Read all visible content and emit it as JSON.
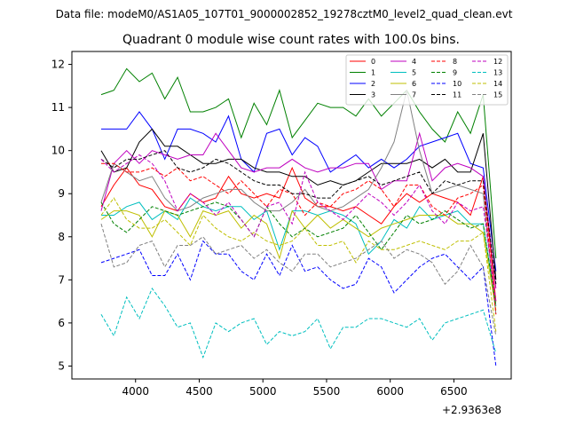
{
  "chart_data": {
    "type": "line",
    "suptitle": "Data file: modeM0/AS1A05_107T01_9000002852_19278cztM0_level2_quad_clean.evt",
    "title": "Quadrant 0 module wise count rates with 100.0s bins.",
    "xlabel": "",
    "ylabel": "",
    "x_offset_label": "+2.9363e8",
    "xlim": [
      3500,
      6950
    ],
    "ylim": [
      4.7,
      12.3
    ],
    "x_ticks": [
      4000,
      4500,
      5000,
      5500,
      6000,
      6500
    ],
    "y_ticks": [
      5,
      6,
      7,
      8,
      9,
      10,
      11,
      12
    ],
    "legend_location": "upper-right",
    "x": [
      3730,
      3830,
      3930,
      4030,
      4130,
      4230,
      4330,
      4430,
      4530,
      4630,
      4730,
      4830,
      4930,
      5030,
      5130,
      5230,
      5330,
      5430,
      5530,
      5630,
      5730,
      5830,
      5930,
      6030,
      6130,
      6230,
      6330,
      6430,
      6530,
      6630,
      6730,
      6830
    ],
    "series": [
      {
        "name": "0",
        "color": "#ff0000",
        "style": "solid",
        "values": [
          8.7,
          9.2,
          9.6,
          9.2,
          9.1,
          8.7,
          8.6,
          9.0,
          8.8,
          8.9,
          9.4,
          9.0,
          8.9,
          9.0,
          8.9,
          9.6,
          8.9,
          8.7,
          8.7,
          8.6,
          8.7,
          8.5,
          8.3,
          8.7,
          9.0,
          8.8,
          9.0,
          8.9,
          8.8,
          8.5,
          9.4,
          6.5
        ]
      },
      {
        "name": "1",
        "color": "#008000",
        "style": "solid",
        "values": [
          11.3,
          11.4,
          11.9,
          11.6,
          11.8,
          11.2,
          11.7,
          10.9,
          10.9,
          11.0,
          11.2,
          10.3,
          11.1,
          10.6,
          11.4,
          10.3,
          10.7,
          11.1,
          11.0,
          11.0,
          10.8,
          11.2,
          10.8,
          11.1,
          11.4,
          10.9,
          10.5,
          10.2,
          10.9,
          10.4,
          11.3,
          7.5
        ]
      },
      {
        "name": "2",
        "color": "#0000ff",
        "style": "solid",
        "values": [
          10.5,
          10.5,
          10.5,
          10.9,
          10.5,
          9.8,
          10.5,
          10.5,
          10.4,
          10.2,
          10.8,
          9.8,
          9.5,
          10.4,
          10.5,
          9.9,
          10.3,
          10.1,
          9.5,
          9.7,
          9.9,
          9.6,
          9.8,
          9.6,
          9.8,
          10.1,
          10.2,
          10.3,
          10.4,
          9.7,
          9.6,
          7.2
        ]
      },
      {
        "name": "3",
        "color": "#000000",
        "style": "solid",
        "values": [
          10.0,
          9.5,
          9.6,
          10.2,
          10.5,
          10.1,
          10.1,
          9.9,
          9.7,
          9.7,
          9.8,
          9.8,
          9.6,
          9.5,
          9.5,
          9.4,
          9.4,
          9.2,
          9.3,
          9.2,
          9.3,
          9.5,
          9.7,
          9.7,
          9.7,
          9.8,
          9.6,
          9.8,
          9.5,
          9.5,
          10.4,
          7.0
        ]
      },
      {
        "name": "4",
        "color": "#bf00bf",
        "style": "solid",
        "values": [
          8.6,
          9.7,
          10.0,
          9.7,
          10.0,
          9.9,
          9.8,
          9.9,
          9.9,
          10.4,
          10.0,
          9.6,
          9.5,
          9.6,
          9.6,
          9.8,
          9.6,
          9.5,
          9.6,
          9.6,
          9.7,
          9.7,
          9.1,
          9.3,
          9.3,
          10.4,
          9.3,
          9.6,
          9.7,
          9.6,
          9.4,
          6.8
        ]
      },
      {
        "name": "5",
        "color": "#00bfbf",
        "style": "solid",
        "values": [
          8.5,
          8.5,
          8.7,
          8.8,
          8.4,
          8.6,
          8.4,
          8.9,
          8.7,
          8.6,
          8.7,
          8.7,
          8.4,
          8.6,
          7.7,
          8.6,
          8.6,
          8.5,
          8.6,
          8.5,
          8.3,
          7.6,
          7.9,
          8.4,
          8.2,
          8.7,
          8.4,
          8.5,
          8.6,
          8.3,
          8.3,
          6.4
        ]
      },
      {
        "name": "6",
        "color": "#bfbf00",
        "style": "solid",
        "values": [
          8.4,
          8.6,
          8.6,
          8.5,
          8.0,
          8.6,
          8.5,
          8.0,
          8.6,
          8.5,
          8.6,
          8.2,
          8.5,
          8.3,
          7.5,
          8.6,
          8.2,
          8.5,
          8.2,
          8.4,
          8.2,
          8.0,
          8.2,
          8.3,
          8.4,
          8.5,
          8.5,
          8.5,
          8.3,
          8.3,
          8.1,
          6.3
        ]
      },
      {
        "name": "7",
        "color": "#808080",
        "style": "solid",
        "values": [
          8.8,
          9.7,
          9.5,
          9.3,
          9.4,
          8.9,
          8.6,
          8.7,
          8.9,
          9.0,
          9.1,
          9.1,
          8.8,
          8.6,
          8.6,
          8.8,
          9.1,
          8.7,
          8.6,
          8.7,
          8.9,
          9.1,
          9.6,
          10.2,
          11.4,
          10.0,
          9.0,
          9.1,
          9.2,
          9.1,
          9.0,
          6.2
        ]
      },
      {
        "name": "8",
        "color": "#ff0000",
        "style": "dashed",
        "values": [
          9.7,
          9.7,
          9.5,
          9.5,
          9.6,
          9.4,
          9.6,
          9.3,
          9.4,
          9.2,
          9.0,
          9.3,
          9.0,
          8.7,
          9.1,
          9.0,
          8.5,
          8.8,
          8.7,
          9.0,
          9.1,
          9.3,
          9.1,
          8.7,
          9.2,
          9.2,
          8.7,
          8.5,
          8.9,
          9.0,
          9.2,
          6.2
        ]
      },
      {
        "name": "9",
        "color": "#008000",
        "style": "dashed",
        "values": [
          8.8,
          8.3,
          8.1,
          8.4,
          8.7,
          8.6,
          8.5,
          8.6,
          8.7,
          8.8,
          8.7,
          8.4,
          8.0,
          8.7,
          8.3,
          8.0,
          8.2,
          8.0,
          8.1,
          8.2,
          8.5,
          8.1,
          7.7,
          8.1,
          8.5,
          8.3,
          8.4,
          8.6,
          8.4,
          8.2,
          8.3,
          6.4
        ]
      },
      {
        "name": "10",
        "color": "#0000ff",
        "style": "dashed",
        "values": [
          7.4,
          7.5,
          7.6,
          7.7,
          7.1,
          7.1,
          7.6,
          7.0,
          7.9,
          7.6,
          7.6,
          7.2,
          7.0,
          7.6,
          7.1,
          7.8,
          7.2,
          7.3,
          7.0,
          6.8,
          6.9,
          7.5,
          7.3,
          6.7,
          7.0,
          7.3,
          7.5,
          7.6,
          7.3,
          7.0,
          7.3,
          5.0
        ]
      },
      {
        "name": "11",
        "color": "#000000",
        "style": "dashed",
        "values": [
          9.8,
          9.6,
          9.8,
          9.8,
          9.9,
          10.0,
          9.6,
          9.5,
          9.6,
          9.8,
          9.7,
          9.5,
          9.3,
          9.2,
          9.2,
          9.0,
          9.0,
          8.9,
          8.9,
          9.2,
          9.3,
          9.4,
          9.2,
          9.3,
          9.4,
          9.5,
          9.0,
          9.3,
          9.2,
          9.3,
          9.3,
          6.9
        ]
      },
      {
        "name": "12",
        "color": "#bf00bf",
        "style": "dashed",
        "values": [
          9.8,
          9.5,
          9.7,
          9.9,
          9.7,
          9.3,
          8.6,
          9.0,
          8.8,
          8.5,
          8.8,
          8.4,
          8.0,
          8.7,
          8.8,
          8.3,
          9.5,
          8.8,
          8.6,
          8.4,
          8.7,
          9.0,
          8.8,
          8.5,
          8.8,
          9.2,
          8.6,
          8.3,
          8.8,
          8.6,
          8.7,
          6.5
        ]
      },
      {
        "name": "13",
        "color": "#00bfbf",
        "style": "dashed",
        "values": [
          6.2,
          5.7,
          6.6,
          6.1,
          6.8,
          6.4,
          5.9,
          6.0,
          5.2,
          6.0,
          5.8,
          6.0,
          6.1,
          5.5,
          5.8,
          5.7,
          5.8,
          6.1,
          5.4,
          5.9,
          5.9,
          6.1,
          6.1,
          6.0,
          5.9,
          6.1,
          5.6,
          6.0,
          6.1,
          6.2,
          6.3,
          5.3
        ]
      },
      {
        "name": "14",
        "color": "#bfbf00",
        "style": "dashed",
        "values": [
          8.5,
          8.9,
          8.4,
          8.2,
          8.2,
          8.4,
          8.1,
          7.8,
          8.5,
          8.2,
          8.0,
          7.9,
          8.1,
          7.9,
          7.8,
          7.9,
          8.2,
          7.8,
          7.8,
          7.9,
          7.4,
          7.9,
          7.7,
          7.7,
          7.8,
          7.9,
          7.8,
          7.7,
          7.9,
          7.9,
          8.1,
          5.8
        ]
      },
      {
        "name": "15",
        "color": "#808080",
        "style": "dashed",
        "values": [
          8.3,
          7.3,
          7.4,
          7.8,
          7.9,
          7.3,
          7.8,
          7.8,
          8.0,
          7.6,
          7.7,
          7.8,
          7.5,
          7.7,
          7.4,
          7.2,
          7.6,
          7.6,
          7.3,
          7.4,
          7.5,
          7.7,
          7.9,
          7.5,
          7.7,
          7.6,
          7.4,
          6.9,
          7.2,
          7.8,
          7.3,
          5.7
        ]
      }
    ]
  }
}
